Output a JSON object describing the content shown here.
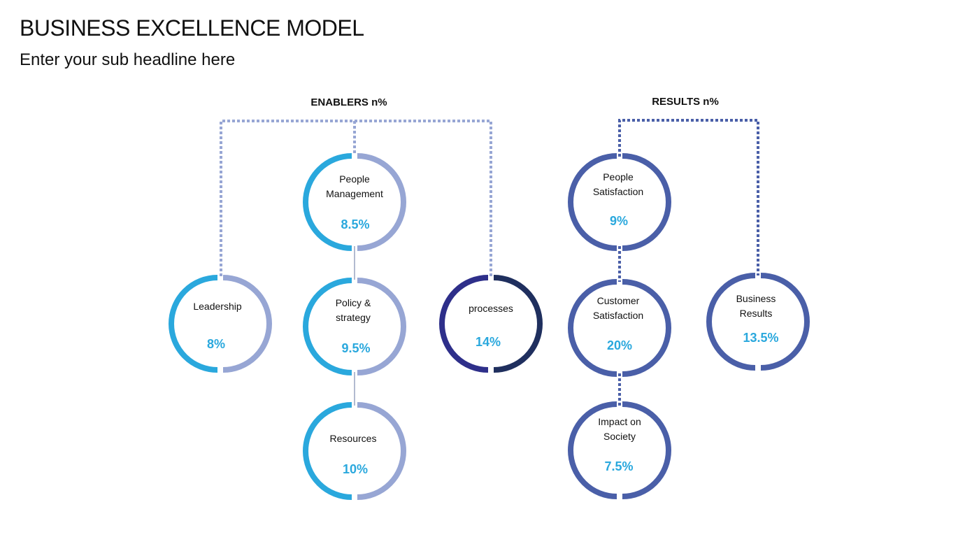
{
  "page": {
    "title": "BUSINESS EXCELLENCE MODEL",
    "subtitle": "Enter your sub headline here"
  },
  "groups": {
    "enablers": {
      "label": "ENABLERS n%",
      "nodes": [
        {
          "id": "people-management",
          "label_lines": [
            "People",
            "Management"
          ],
          "value": "8.5%"
        },
        {
          "id": "leadership",
          "label_lines": [
            "Leadership"
          ],
          "value": "8%"
        },
        {
          "id": "policy-strategy",
          "label_lines": [
            "Policy &",
            "strategy"
          ],
          "value": "9.5%"
        },
        {
          "id": "processes",
          "label_lines": [
            "processes"
          ],
          "value": "14%"
        },
        {
          "id": "resources",
          "label_lines": [
            "Resources"
          ],
          "value": "10%"
        }
      ]
    },
    "results": {
      "label": "RESULTS n%",
      "nodes": [
        {
          "id": "people-satisfaction",
          "label_lines": [
            "People",
            "Satisfaction"
          ],
          "value": "9%"
        },
        {
          "id": "customer-satisfaction",
          "label_lines": [
            "Customer",
            "Satisfaction"
          ],
          "value": "20%"
        },
        {
          "id": "business-results",
          "label_lines": [
            "Business",
            "Results"
          ],
          "value": "13.5%"
        },
        {
          "id": "impact-on-society",
          "label_lines": [
            "Impact on",
            "Society"
          ],
          "value": "7.5%"
        }
      ]
    }
  },
  "colors": {
    "cyan": "#2aa8dd",
    "lavender": "#97a6d4",
    "royal": "#4a5fa8",
    "indigo": "#2e2f8a",
    "navy": "#1f2f5e",
    "text": "#111111"
  }
}
